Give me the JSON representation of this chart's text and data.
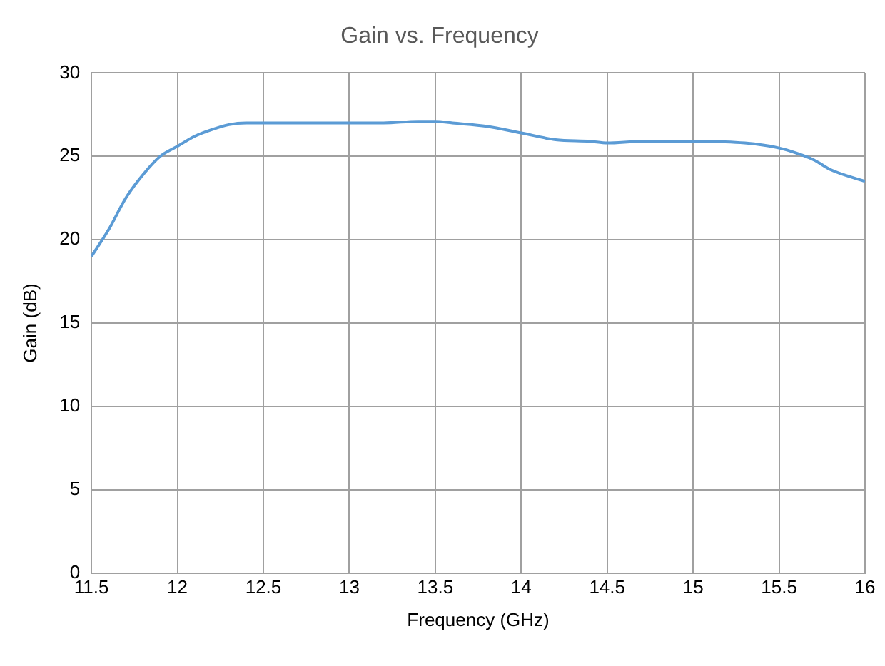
{
  "chart_data": {
    "type": "line",
    "title": "Gain vs. Frequency",
    "xlabel": "Frequency (GHz)",
    "ylabel": "Gain (dB)",
    "x": [
      11.5,
      11.6,
      11.7,
      11.8,
      11.9,
      12.0,
      12.1,
      12.2,
      12.3,
      12.4,
      12.6,
      12.8,
      13.0,
      13.2,
      13.4,
      13.5,
      13.6,
      13.8,
      14.0,
      14.2,
      14.4,
      14.5,
      14.7,
      15.0,
      15.3,
      15.5,
      15.6,
      15.7,
      15.8,
      16.0
    ],
    "series": [
      {
        "color": "#5b9bd5",
        "values": [
          19,
          20.6,
          22.5,
          23.9,
          25,
          25.6,
          26.2,
          26.6,
          26.9,
          27.0,
          27.0,
          27.0,
          27.0,
          27.0,
          27.1,
          27.1,
          27.0,
          26.8,
          26.4,
          26.0,
          25.9,
          25.8,
          25.9,
          25.9,
          25.8,
          25.5,
          25.2,
          24.8,
          24.2,
          23.5
        ]
      }
    ],
    "xlim": [
      11.5,
      16
    ],
    "xticks": [
      11.5,
      12,
      12.5,
      13,
      13.5,
      14,
      14.5,
      15,
      15.5,
      16
    ],
    "ylim": [
      0,
      30
    ],
    "yticks": [
      0,
      5,
      10,
      15,
      20,
      25,
      30
    ],
    "grid": true,
    "legend": false,
    "marker": "none",
    "line_style": "solid"
  }
}
